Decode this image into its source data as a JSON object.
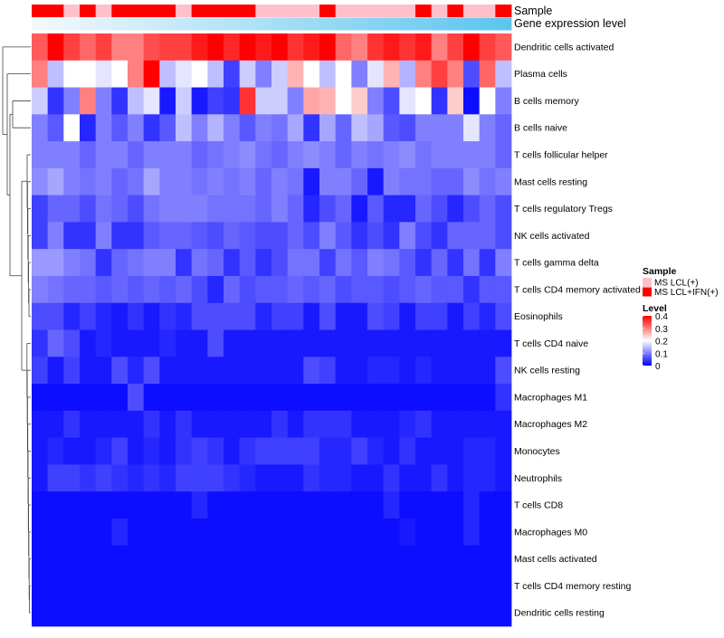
{
  "chart_data": {
    "type": "heatmap",
    "title": "",
    "annotation_rows": [
      "Sample",
      "Gene expression level"
    ],
    "rows": [
      "Dendritic cells activated",
      "Plasma cells",
      "B cells memory",
      "B cells naive",
      "T cells follicular helper",
      "Mast cells resting",
      "T cells regulatory  Tregs",
      "NK cells activated",
      "T cells gamma delta",
      "T cells CD4 memory activated",
      "Eosinophils",
      "T cells CD4 naive",
      "NK cells resting",
      "Macrophages M1",
      "Macrophages M2",
      "Monocytes",
      "Neutrophils",
      "T cells CD8",
      "Macrophages M0",
      "Mast cells activated",
      "T cells CD4 memory resting",
      "Dendritic cells resting"
    ],
    "n_columns": 30,
    "sample_group": [
      1,
      1,
      0,
      1,
      0,
      1,
      1,
      1,
      1,
      0,
      1,
      1,
      1,
      1,
      0,
      0,
      0,
      0,
      1,
      0,
      0,
      0,
      0,
      0,
      1,
      0,
      1,
      0,
      0,
      1
    ],
    "sample_legend": {
      "title": "Sample",
      "entries": [
        {
          "label": "MS LCL(+)",
          "color": "#ffc0cb"
        },
        {
          "label": "MS LCL+IFN(+)",
          "color": "#ff0000"
        }
      ]
    },
    "expression_gradient": {
      "from": "#f2f8fb",
      "to": "#5ec6ee"
    },
    "color_scale": {
      "title": "Level",
      "min": 0,
      "max": 0.4,
      "ticks": [
        0.4,
        0.3,
        0.2,
        0.1,
        0
      ],
      "tick_labels": [
        "0.4",
        "0.3",
        "0.2",
        "0.1",
        "0"
      ],
      "colors": [
        "#0000ff",
        "#ffffff",
        "#ff0000"
      ]
    },
    "values": [
      [
        0.33,
        0.4,
        0.35,
        0.32,
        0.35,
        0.3,
        0.3,
        0.34,
        0.35,
        0.35,
        0.38,
        0.4,
        0.37,
        0.4,
        0.38,
        0.4,
        0.36,
        0.38,
        0.4,
        0.32,
        0.3,
        0.36,
        0.38,
        0.36,
        0.38,
        0.3,
        0.35,
        0.4,
        0.35,
        0.33
      ],
      [
        0.3,
        0.15,
        0.2,
        0.2,
        0.18,
        0.2,
        0.3,
        0.4,
        0.15,
        0.18,
        0.2,
        0.15,
        0.05,
        0.16,
        0.1,
        0.16,
        0.26,
        0.2,
        0.15,
        0.2,
        0.1,
        0.18,
        0.26,
        0.14,
        0.3,
        0.35,
        0.3,
        0.06,
        0.32,
        0.15
      ],
      [
        0.16,
        0.04,
        0.1,
        0.3,
        0.1,
        0.04,
        0.15,
        0.18,
        0.02,
        0.16,
        0.02,
        0.05,
        0.04,
        0.36,
        0.16,
        0.16,
        0.1,
        0.27,
        0.26,
        0.2,
        0.24,
        0.1,
        0.06,
        0.18,
        0.2,
        0.04,
        0.24,
        0.01,
        0.2,
        0.1
      ],
      [
        0.1,
        0.07,
        0.2,
        0.03,
        0.1,
        0.07,
        0.1,
        0.04,
        0.07,
        0.15,
        0.1,
        0.14,
        0.1,
        0.07,
        0.1,
        0.09,
        0.13,
        0.04,
        0.13,
        0.08,
        0.15,
        0.13,
        0.07,
        0.06,
        0.1,
        0.1,
        0.1,
        0.18,
        0.1,
        0.08
      ],
      [
        0.1,
        0.1,
        0.1,
        0.08,
        0.1,
        0.1,
        0.08,
        0.1,
        0.1,
        0.1,
        0.08,
        0.09,
        0.1,
        0.11,
        0.09,
        0.08,
        0.1,
        0.11,
        0.1,
        0.08,
        0.1,
        0.09,
        0.1,
        0.11,
        0.09,
        0.1,
        0.1,
        0.1,
        0.1,
        0.08
      ],
      [
        0.11,
        0.13,
        0.1,
        0.09,
        0.1,
        0.08,
        0.09,
        0.13,
        0.1,
        0.1,
        0.09,
        0.1,
        0.09,
        0.1,
        0.08,
        0.1,
        0.09,
        0.02,
        0.1,
        0.1,
        0.08,
        0.02,
        0.1,
        0.09,
        0.09,
        0.08,
        0.08,
        0.11,
        0.09,
        0.1
      ],
      [
        0.05,
        0.08,
        0.08,
        0.06,
        0.09,
        0.08,
        0.06,
        0.09,
        0.1,
        0.1,
        0.1,
        0.09,
        0.09,
        0.09,
        0.08,
        0.1,
        0.08,
        0.03,
        0.06,
        0.08,
        0.02,
        0.07,
        0.03,
        0.03,
        0.08,
        0.06,
        0.03,
        0.06,
        0.08,
        0.06
      ],
      [
        0.05,
        0.1,
        0.04,
        0.04,
        0.1,
        0.04,
        0.04,
        0.07,
        0.08,
        0.08,
        0.07,
        0.06,
        0.08,
        0.07,
        0.06,
        0.06,
        0.08,
        0.06,
        0.1,
        0.07,
        0.04,
        0.06,
        0.04,
        0.1,
        0.06,
        0.04,
        0.08,
        0.08,
        0.08,
        0.06
      ],
      [
        0.12,
        0.12,
        0.1,
        0.09,
        0.04,
        0.08,
        0.09,
        0.1,
        0.1,
        0.04,
        0.09,
        0.08,
        0.04,
        0.07,
        0.04,
        0.06,
        0.09,
        0.09,
        0.05,
        0.09,
        0.07,
        0.1,
        0.09,
        0.07,
        0.04,
        0.08,
        0.04,
        0.09,
        0.04,
        0.1
      ],
      [
        0.1,
        0.09,
        0.08,
        0.08,
        0.07,
        0.08,
        0.07,
        0.08,
        0.07,
        0.08,
        0.06,
        0.03,
        0.08,
        0.06,
        0.07,
        0.07,
        0.08,
        0.07,
        0.08,
        0.06,
        0.07,
        0.07,
        0.06,
        0.07,
        0.08,
        0.07,
        0.07,
        0.04,
        0.07,
        0.07
      ],
      [
        0.06,
        0.06,
        0.03,
        0.05,
        0.03,
        0.02,
        0.04,
        0.02,
        0.04,
        0.03,
        0.06,
        0.06,
        0.06,
        0.06,
        0.03,
        0.05,
        0.05,
        0.02,
        0.06,
        0.02,
        0.02,
        0.06,
        0.05,
        0.02,
        0.05,
        0.05,
        0.02,
        0.05,
        0.03,
        0.06
      ],
      [
        0.04,
        0.08,
        0.06,
        0.02,
        0.03,
        0.02,
        0.02,
        0.02,
        0.03,
        0.02,
        0.02,
        0.06,
        0.02,
        0.02,
        0.02,
        0.02,
        0.02,
        0.02,
        0.02,
        0.02,
        0.02,
        0.02,
        0.02,
        0.02,
        0.02,
        0.02,
        0.02,
        0.02,
        0.02,
        0.02
      ],
      [
        0.05,
        0.02,
        0.05,
        0.02,
        0.02,
        0.06,
        0.03,
        0.06,
        0.02,
        0.02,
        0.02,
        0.02,
        0.02,
        0.02,
        0.02,
        0.02,
        0.02,
        0.06,
        0.05,
        0.02,
        0.02,
        0.03,
        0.03,
        0.02,
        0.03,
        0.02,
        0.02,
        0.02,
        0.02,
        0.06
      ],
      [
        0.01,
        0.01,
        0.01,
        0.01,
        0.01,
        0.01,
        0.06,
        0.01,
        0.01,
        0.01,
        0.01,
        0.01,
        0.01,
        0.01,
        0.01,
        0.01,
        0.01,
        0.01,
        0.01,
        0.01,
        0.01,
        0.01,
        0.01,
        0.01,
        0.01,
        0.01,
        0.01,
        0.01,
        0.01,
        0.04
      ],
      [
        0.02,
        0.02,
        0.04,
        0.02,
        0.02,
        0.02,
        0.02,
        0.04,
        0.02,
        0.04,
        0.02,
        0.02,
        0.02,
        0.02,
        0.02,
        0.04,
        0.02,
        0.04,
        0.04,
        0.04,
        0.02,
        0.02,
        0.02,
        0.03,
        0.04,
        0.02,
        0.02,
        0.02,
        0.02,
        0.02
      ],
      [
        0.02,
        0.03,
        0.02,
        0.02,
        0.03,
        0.05,
        0.02,
        0.03,
        0.02,
        0.04,
        0.05,
        0.04,
        0.02,
        0.04,
        0.05,
        0.05,
        0.05,
        0.05,
        0.03,
        0.03,
        0.05,
        0.03,
        0.02,
        0.04,
        0.02,
        0.02,
        0.02,
        0.03,
        0.03,
        0.02
      ],
      [
        0.02,
        0.05,
        0.05,
        0.04,
        0.05,
        0.04,
        0.03,
        0.04,
        0.03,
        0.05,
        0.05,
        0.05,
        0.04,
        0.03,
        0.02,
        0.02,
        0.02,
        0.04,
        0.03,
        0.03,
        0.02,
        0.02,
        0.04,
        0.02,
        0.02,
        0.04,
        0.02,
        0.03,
        0.03,
        0.02
      ],
      [
        0.01,
        0.01,
        0.01,
        0.01,
        0.01,
        0.01,
        0.01,
        0.01,
        0.01,
        0.01,
        0.03,
        0.01,
        0.01,
        0.01,
        0.01,
        0.01,
        0.01,
        0.01,
        0.01,
        0.01,
        0.01,
        0.01,
        0.03,
        0.01,
        0.01,
        0.01,
        0.01,
        0.03,
        0.01,
        0.01
      ],
      [
        0.01,
        0.01,
        0.01,
        0.01,
        0.01,
        0.03,
        0.01,
        0.01,
        0.01,
        0.01,
        0.01,
        0.01,
        0.01,
        0.01,
        0.01,
        0.01,
        0.01,
        0.01,
        0.01,
        0.01,
        0.01,
        0.01,
        0.01,
        0.02,
        0.01,
        0.01,
        0.01,
        0.03,
        0.01,
        0.01
      ],
      [
        0.01,
        0.01,
        0.01,
        0.01,
        0.01,
        0.01,
        0.01,
        0.01,
        0.01,
        0.01,
        0.01,
        0.01,
        0.01,
        0.01,
        0.01,
        0.01,
        0.01,
        0.01,
        0.01,
        0.01,
        0.01,
        0.01,
        0.01,
        0.01,
        0.01,
        0.01,
        0.01,
        0.01,
        0.01,
        0.01
      ],
      [
        0.01,
        0.01,
        0.01,
        0.01,
        0.01,
        0.01,
        0.01,
        0.01,
        0.01,
        0.01,
        0.01,
        0.01,
        0.01,
        0.01,
        0.01,
        0.01,
        0.01,
        0.01,
        0.01,
        0.01,
        0.01,
        0.01,
        0.01,
        0.01,
        0.01,
        0.01,
        0.01,
        0.01,
        0.01,
        0.01
      ],
      [
        0.01,
        0.01,
        0.01,
        0.01,
        0.01,
        0.01,
        0.01,
        0.01,
        0.01,
        0.01,
        0.01,
        0.01,
        0.01,
        0.01,
        0.01,
        0.01,
        0.01,
        0.01,
        0.01,
        0.01,
        0.01,
        0.01,
        0.01,
        0.01,
        0.01,
        0.01,
        0.01,
        0.01,
        0.01,
        0.01
      ]
    ]
  }
}
